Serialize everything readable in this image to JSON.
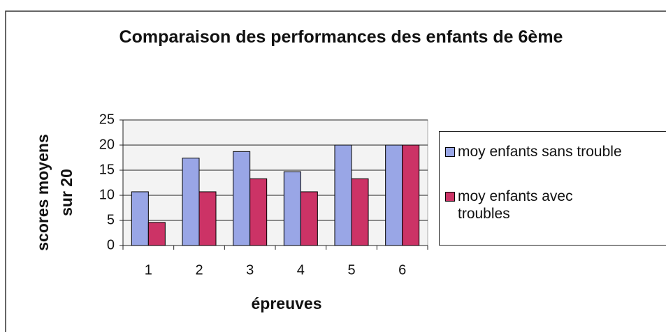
{
  "chart_data": {
    "type": "bar",
    "title": "Comparaison des performances des enfants de 6ème",
    "x_label": "épreuves",
    "y_label": "scores moyens sur 20",
    "categories": [
      "1",
      "2",
      "3",
      "4",
      "5",
      "6"
    ],
    "series": [
      {
        "name": "moy enfants sans trouble",
        "color": "#99a6e6",
        "values": [
          10.7,
          17.4,
          18.7,
          14.7,
          20,
          20
        ]
      },
      {
        "name": "moy enfants avec troubles",
        "color": "#cc3366",
        "values": [
          4.6,
          10.7,
          13.3,
          10.7,
          13.3,
          20
        ]
      }
    ],
    "ylim": [
      0,
      25
    ],
    "yticks": [
      0,
      5,
      10,
      15,
      20,
      25
    ],
    "grid": true,
    "legend": "right"
  }
}
